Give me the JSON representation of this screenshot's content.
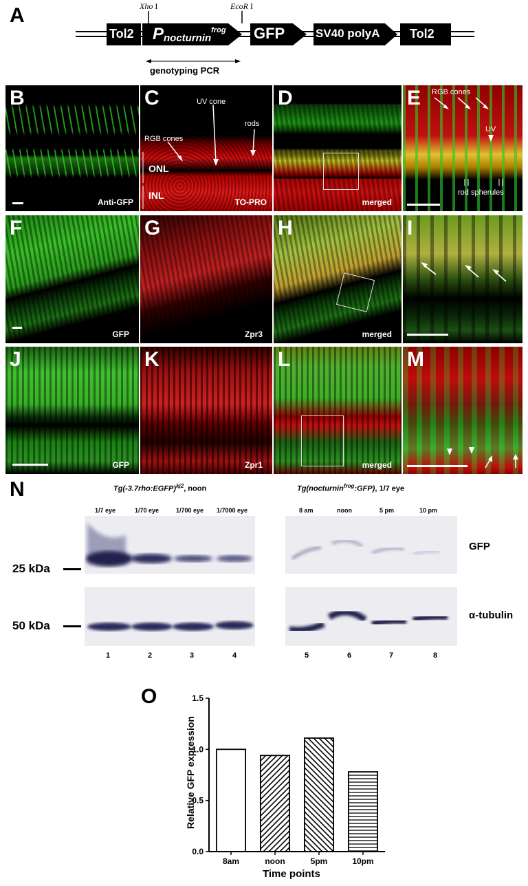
{
  "panels": {
    "A": "A",
    "B": "B",
    "C": "C",
    "D": "D",
    "E": "E",
    "F": "F",
    "G": "G",
    "H": "H",
    "I": "I",
    "J": "J",
    "K": "K",
    "L": "L",
    "M": "M",
    "N": "N",
    "O": "O"
  },
  "construct": {
    "tol2_left": "Tol2",
    "promoter_p": "P",
    "promoter_sub": "nocturnin",
    "promoter_sup": "frog",
    "gfp": "GFP",
    "polya": "SV40 polyA",
    "tol2_right": "Tol2",
    "xho": "Xho",
    "xho_num": "I",
    "ecor": "EcoR",
    "ecor_num": "I",
    "pcr": "genotyping PCR"
  },
  "micrographs": {
    "B": {
      "stain": "Anti-GFP"
    },
    "C": {
      "stain": "TO-PRO",
      "rgb": "RGB cones",
      "uv": "UV cone",
      "rods": "rods",
      "onl": "ONL",
      "inl": "INL"
    },
    "D": {
      "stain": "merged"
    },
    "E": {
      "rgb": "RGB cones",
      "uv": "UV",
      "spherules": "rod spherules"
    },
    "F": {
      "stain": "GFP"
    },
    "G": {
      "stain": "Zpr3"
    },
    "H": {
      "stain": "merged"
    },
    "J": {
      "stain": "GFP"
    },
    "K": {
      "stain": "Zpr1"
    },
    "L": {
      "stain": "merged"
    }
  },
  "blot": {
    "left_title": "Tg(-3.7rho:EGFP)",
    "left_title_sup": "kj2",
    "left_title_tail": ", noon",
    "right_title": "Tg(nocturnin",
    "right_title_sup": "frog",
    "right_title_mid": ":GFP)",
    "right_title_tail": ", 1/7 eye",
    "left_lanes": [
      "1/7 eye",
      "1/70 eye",
      "1/700 eye",
      "1/7000 eye"
    ],
    "right_lanes": [
      "8 am",
      "noon",
      "5 pm",
      "10 pm"
    ],
    "lane_numbers": [
      "1",
      "2",
      "3",
      "4",
      "5",
      "6",
      "7",
      "8"
    ],
    "marker_25": "25 kDa",
    "marker_50": "50 kDa",
    "gfp_label": "GFP",
    "tubulin_label": "α-tubulin"
  },
  "chart_data": {
    "type": "bar",
    "categories": [
      "8am",
      "noon",
      "5pm",
      "10pm"
    ],
    "values": [
      1.0,
      0.94,
      1.11,
      0.78
    ],
    "patterns": [
      "none",
      "diagonal-right",
      "diagonal-left",
      "horizontal"
    ],
    "xlabel": "Time points",
    "ylabel": "Relative GFP expression",
    "ylim": [
      0.0,
      1.5
    ],
    "yticks": [
      "0.0",
      "0.5",
      "1.0",
      "1.5"
    ],
    "grid": false
  }
}
